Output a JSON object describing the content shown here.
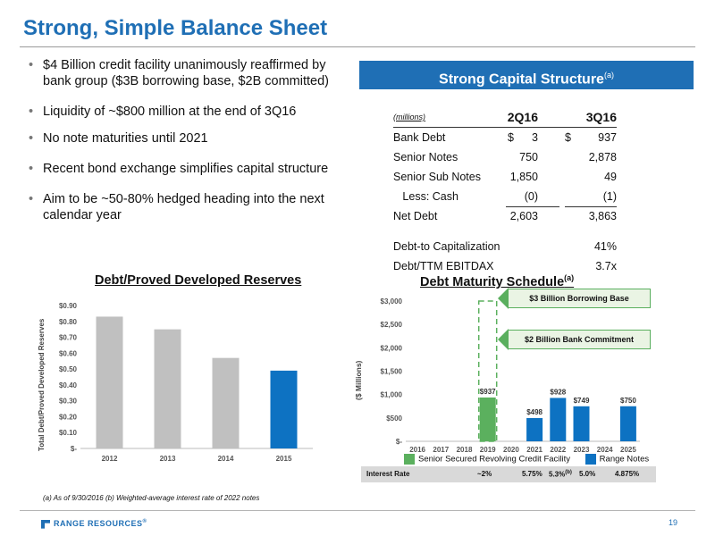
{
  "page": {
    "title": "Strong, Simple Balance Sheet",
    "page_number": "19",
    "footnote": "(a)  As of 9/30/2016  (b) Weighted-average interest rate of 2022 notes",
    "logo_text": "RANGE RESOURCES",
    "logo_mark": "®",
    "colors": {
      "title": "#1f6fb5",
      "box": "#1f6fb5",
      "bar_gray": "#c0c0c0",
      "bar_blue": "#0d72c2",
      "bar_green": "#5bb05e"
    }
  },
  "bullets": [
    "$4 Billion credit facility unanimously reaffirmed by bank group ($3B borrowing base, $2B committed)",
    "Liquidity of ~$800 million at the end of 3Q16",
    "No note maturities until 2021",
    "Recent bond exchange simplifies capital structure",
    "Aim to be ~50-80% hedged heading into the next calendar year"
  ],
  "capital_structure": {
    "title": "Strong Capital Structure",
    "title_note": "(a)",
    "units": "(millions)",
    "col1": "2Q16",
    "col2": "3Q16",
    "rows": [
      {
        "label": "Bank Debt",
        "v1": "3",
        "v2": "937",
        "dollar1": "$",
        "dollar2": "$"
      },
      {
        "label": "Senior Notes",
        "v1": "750",
        "v2": "2,878"
      },
      {
        "label": "Senior Sub Notes",
        "v1": "1,850",
        "v2": "49"
      },
      {
        "label": "   Less: Cash",
        "v1": "(0)",
        "v2": "(1)"
      },
      {
        "label": "Net Debt",
        "v1": "2,603",
        "v2": "3,863"
      }
    ],
    "ratios": [
      {
        "label": "Debt-to Capitalization",
        "value": "41%"
      },
      {
        "label": "Debt/TTM EBITDAX",
        "value": "3.7x"
      }
    ]
  },
  "chart_data": [
    {
      "type": "bar",
      "title": "Debt/Proved Developed Reserves",
      "ylabel": "Total Debt/Proved Developed Reserves",
      "categories": [
        "2012",
        "2013",
        "2014",
        "2015"
      ],
      "values": [
        0.83,
        0.75,
        0.57,
        0.49
      ],
      "bar_colors": [
        "#c0c0c0",
        "#c0c0c0",
        "#c0c0c0",
        "#0d72c2"
      ],
      "ylim": [
        0,
        0.9
      ],
      "yticks": [
        "$-",
        "$0.10",
        "$0.20",
        "$0.30",
        "$0.40",
        "$0.50",
        "$0.60",
        "$0.70",
        "$0.80",
        "$0.90"
      ]
    },
    {
      "type": "bar",
      "title": "Debt Maturity Schedule",
      "title_note": "(a)",
      "ylabel": "($ Millions)",
      "categories": [
        "2016",
        "2017",
        "2018",
        "2019",
        "2020",
        "2021",
        "2022",
        "2023",
        "2024",
        "2025"
      ],
      "series": [
        {
          "name": "Senior Secured Revolving Credit Facility",
          "color": "#5bb05e",
          "values": [
            0,
            0,
            0,
            937,
            0,
            0,
            0,
            0,
            0,
            0
          ]
        },
        {
          "name": "Range Notes",
          "color": "#0d72c2",
          "values": [
            0,
            0,
            0,
            0,
            0,
            498,
            928,
            749,
            0,
            750
          ]
        }
      ],
      "data_labels": {
        "2019": "$937",
        "2021": "$498",
        "2022": "$928",
        "2023": "$749",
        "2025": "$750"
      },
      "ylim": [
        0,
        3000
      ],
      "yticks": [
        "$-",
        "$500",
        "$1,000",
        "$1,500",
        "$2,000",
        "$2,500",
        "$3,000"
      ],
      "annotations": [
        "$3 Billion Borrowing Base",
        "$2 Billion Bank Commitment"
      ],
      "interest_rate": {
        "label": "Interest Rate",
        "values": [
          {
            "year": "2019",
            "text": "~2%"
          },
          {
            "year": "2021",
            "text": "5.75%"
          },
          {
            "year": "2022",
            "text": "5.3%",
            "note": "(b)"
          },
          {
            "year": "2023",
            "text": "5.0%"
          },
          {
            "year": "2025",
            "text": "4.875%"
          }
        ]
      }
    }
  ]
}
